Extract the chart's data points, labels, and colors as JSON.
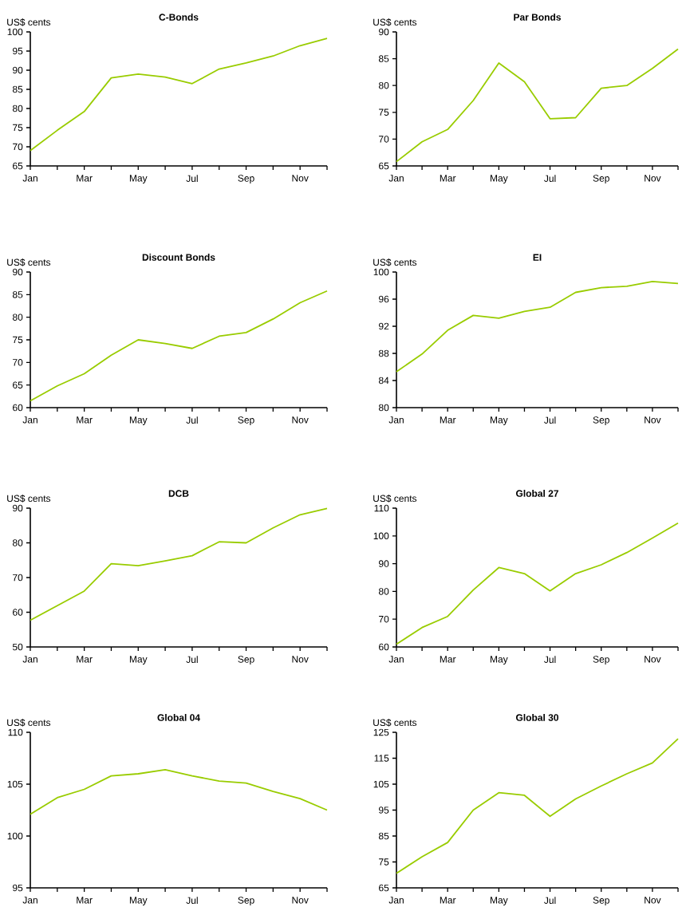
{
  "chart_data": [
    {
      "type": "line",
      "title": "C-Bonds",
      "ylabel": "US$ cents",
      "categories": [
        "Jan",
        null,
        "Mar",
        null,
        "May",
        null,
        "Jul",
        null,
        "Sep",
        null,
        "Nov",
        null
      ],
      "values": [
        69,
        74.3,
        79.2,
        88,
        89,
        88.2,
        86.5,
        90.3,
        91.9,
        93.7,
        96.4,
        98.3
      ],
      "color": "#99cc00",
      "ylim": [
        65,
        100
      ],
      "yticks": [
        65,
        70,
        75,
        80,
        85,
        90,
        95,
        100
      ]
    },
    {
      "type": "line",
      "title": "Par Bonds",
      "ylabel": "US$ cents",
      "categories": [
        "Jan",
        null,
        "Mar",
        null,
        "May",
        null,
        "Jul",
        null,
        "Sep",
        null,
        "Nov",
        null
      ],
      "values": [
        65.8,
        69.5,
        71.8,
        77.2,
        84.2,
        80.7,
        73.8,
        74,
        79.5,
        80,
        83.2,
        86.8
      ],
      "color": "#99cc00",
      "ylim": [
        65,
        90
      ],
      "yticks": [
        65,
        70,
        75,
        80,
        85,
        90
      ]
    },
    {
      "type": "line",
      "title": "Discount Bonds",
      "ylabel": "US$ cents",
      "categories": [
        "Jan",
        null,
        "Mar",
        null,
        "May",
        null,
        "Jul",
        null,
        "Sep",
        null,
        "Nov",
        null
      ],
      "values": [
        61.5,
        64.8,
        67.5,
        71.6,
        75,
        74.2,
        73.1,
        75.8,
        76.6,
        79.6,
        83.2,
        85.8
      ],
      "color": "#99cc00",
      "ylim": [
        60,
        90
      ],
      "yticks": [
        60,
        65,
        70,
        75,
        80,
        85,
        90
      ]
    },
    {
      "type": "line",
      "title": "EI",
      "ylabel": "US$ cents",
      "categories": [
        "Jan",
        null,
        "Mar",
        null,
        "May",
        null,
        "Jul",
        null,
        "Sep",
        null,
        "Nov",
        null
      ],
      "values": [
        85.3,
        87.9,
        91.4,
        93.6,
        93.2,
        94.2,
        94.8,
        97,
        97.7,
        97.9,
        98.6,
        98.3
      ],
      "color": "#99cc00",
      "ylim": [
        80,
        100
      ],
      "yticks": [
        80,
        84,
        88,
        92,
        96,
        100
      ]
    },
    {
      "type": "line",
      "title": "DCB",
      "ylabel": "US$ cents",
      "categories": [
        "Jan",
        null,
        "Mar",
        null,
        "May",
        null,
        "Jul",
        null,
        "Sep",
        null,
        "Nov",
        null
      ],
      "values": [
        57.7,
        61.9,
        66.1,
        74,
        73.4,
        74.8,
        76.3,
        80.3,
        80,
        84.3,
        88.1,
        89.9
      ],
      "color": "#99cc00",
      "ylim": [
        50,
        90
      ],
      "yticks": [
        50,
        60,
        70,
        80,
        90
      ]
    },
    {
      "type": "line",
      "title": "Global 27",
      "ylabel": "US$ cents",
      "categories": [
        "Jan",
        null,
        "Mar",
        null,
        "May",
        null,
        "Jul",
        null,
        "Sep",
        null,
        "Nov",
        null
      ],
      "values": [
        61,
        67,
        71,
        80.5,
        88.6,
        86.4,
        80.2,
        86.4,
        89.6,
        94,
        99.2,
        104.6
      ],
      "color": "#99cc00",
      "ylim": [
        60,
        110
      ],
      "yticks": [
        60,
        70,
        80,
        90,
        100,
        110
      ]
    },
    {
      "type": "line",
      "title": "Global 04",
      "ylabel": "US$ cents",
      "categories": [
        "Jan",
        null,
        "Mar",
        null,
        "May",
        null,
        "Jul",
        null,
        "Sep",
        null,
        "Nov",
        null
      ],
      "values": [
        102.1,
        103.7,
        104.5,
        105.8,
        106,
        106.4,
        105.8,
        105.3,
        105.1,
        104.3,
        103.6,
        102.5
      ],
      "color": "#99cc00",
      "ylim": [
        95,
        110
      ],
      "yticks": [
        95,
        100,
        105,
        110
      ]
    },
    {
      "type": "line",
      "title": "Global 30",
      "ylabel": "US$ cents",
      "categories": [
        "Jan",
        null,
        "Mar",
        null,
        "May",
        null,
        "Jul",
        null,
        "Sep",
        null,
        "Nov",
        null
      ],
      "values": [
        70.6,
        77,
        82.5,
        95,
        101.7,
        100.7,
        92.6,
        99.3,
        104.3,
        109,
        113.2,
        122.5
      ],
      "color": "#99cc00",
      "ylim": [
        65,
        125
      ],
      "yticks": [
        65,
        75,
        85,
        95,
        105,
        115,
        125
      ]
    }
  ]
}
